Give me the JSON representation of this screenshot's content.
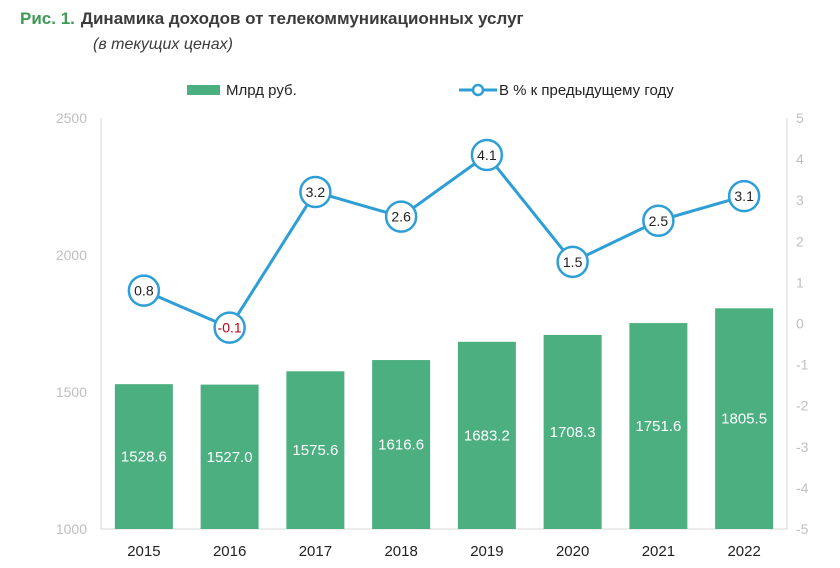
{
  "header": {
    "fig_label": "Рис. 1.",
    "title": "Динамика доходов от телекоммуникационных услуг",
    "subtitle": "(в текущих ценах)"
  },
  "colors": {
    "bar": "#4caf80",
    "line": "#2e9fd6",
    "marker_fill": "#ffffff",
    "axis_tick_text": "#bfbfbf",
    "negative_label": "#c0001a"
  },
  "chart_data": {
    "type": "bar",
    "categories": [
      "2015",
      "2016",
      "2017",
      "2018",
      "2019",
      "2020",
      "2021",
      "2022"
    ],
    "series": [
      {
        "name": "Млрд руб.",
        "type": "bar",
        "axis": "left",
        "values": [
          1528.6,
          1527.0,
          1575.6,
          1616.6,
          1683.2,
          1708.3,
          1751.6,
          1805.5
        ],
        "labels": [
          "1528.6",
          "1527.0",
          "1575.6",
          "1616.6",
          "1683.2",
          "1708.3",
          "1751.6",
          "1805.5"
        ]
      },
      {
        "name": "В % к предыдущему году",
        "type": "line",
        "axis": "right",
        "values": [
          0.8,
          -0.1,
          3.2,
          2.6,
          4.1,
          1.5,
          2.5,
          3.1
        ],
        "labels": [
          "0.8",
          "-0.1",
          "3.2",
          "2.6",
          "4.1",
          "1.5",
          "2.5",
          "3.1"
        ]
      }
    ],
    "y_left": {
      "min": 1000,
      "max": 2500,
      "ticks": [
        "1000",
        "1500",
        "2000",
        "2500"
      ]
    },
    "y_right": {
      "min": -5,
      "max": 5,
      "ticks": [
        "-5",
        "-4",
        "-3",
        "-2",
        "-1",
        "0",
        "1",
        "2",
        "3",
        "4",
        "5"
      ]
    },
    "grid": false,
    "legend": "top"
  }
}
